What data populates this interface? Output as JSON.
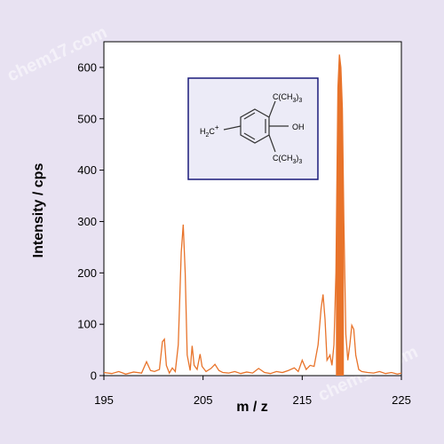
{
  "chart_data": {
    "type": "line",
    "title": "",
    "xlabel": "m / z",
    "ylabel": "Intensity / cps",
    "xlim": [
      195,
      225
    ],
    "ylim": [
      0,
      650
    ],
    "x_ticks": [
      195,
      205,
      215,
      225
    ],
    "y_ticks": [
      0,
      100,
      200,
      300,
      400,
      500,
      600
    ],
    "grid": false,
    "legend": "none",
    "series": [
      {
        "color": "#e8732a",
        "points": [
          [
            195.0,
            6
          ],
          [
            195.8,
            4
          ],
          [
            196.5,
            8
          ],
          [
            197.2,
            3
          ],
          [
            198.0,
            7
          ],
          [
            198.8,
            5
          ],
          [
            199.3,
            27
          ],
          [
            199.7,
            10
          ],
          [
            200.1,
            8
          ],
          [
            200.6,
            12
          ],
          [
            200.9,
            66
          ],
          [
            201.1,
            71
          ],
          [
            201.3,
            20
          ],
          [
            201.6,
            5
          ],
          [
            201.9,
            15
          ],
          [
            202.2,
            8
          ],
          [
            202.5,
            60
          ],
          [
            202.8,
            240
          ],
          [
            203.0,
            294
          ],
          [
            203.2,
            200
          ],
          [
            203.4,
            40
          ],
          [
            203.7,
            10
          ],
          [
            203.9,
            58
          ],
          [
            204.1,
            20
          ],
          [
            204.4,
            12
          ],
          [
            204.7,
            42
          ],
          [
            204.9,
            18
          ],
          [
            205.3,
            8
          ],
          [
            205.8,
            14
          ],
          [
            206.2,
            22
          ],
          [
            206.6,
            10
          ],
          [
            207.0,
            6
          ],
          [
            207.6,
            5
          ],
          [
            208.2,
            8
          ],
          [
            208.8,
            4
          ],
          [
            209.4,
            7
          ],
          [
            210.0,
            5
          ],
          [
            210.6,
            14
          ],
          [
            211.2,
            6
          ],
          [
            211.8,
            4
          ],
          [
            212.4,
            8
          ],
          [
            213.0,
            6
          ],
          [
            213.6,
            10
          ],
          [
            214.2,
            15
          ],
          [
            214.6,
            8
          ],
          [
            215.0,
            30
          ],
          [
            215.4,
            12
          ],
          [
            215.8,
            20
          ],
          [
            216.2,
            18
          ],
          [
            216.6,
            60
          ],
          [
            216.9,
            130
          ],
          [
            217.1,
            158
          ],
          [
            217.3,
            110
          ],
          [
            217.5,
            30
          ],
          [
            217.8,
            40
          ],
          [
            218.0,
            20
          ],
          [
            218.2,
            60
          ],
          [
            218.4,
            200
          ],
          [
            218.6,
            560
          ],
          [
            218.75,
            625
          ],
          [
            218.9,
            600
          ],
          [
            219.05,
            520
          ],
          [
            219.2,
            300
          ],
          [
            219.4,
            80
          ],
          [
            219.6,
            30
          ],
          [
            219.8,
            60
          ],
          [
            220.0,
            98
          ],
          [
            220.2,
            90
          ],
          [
            220.4,
            40
          ],
          [
            220.7,
            12
          ],
          [
            221.0,
            8
          ],
          [
            221.6,
            6
          ],
          [
            222.2,
            5
          ],
          [
            222.8,
            8
          ],
          [
            223.4,
            4
          ],
          [
            224.0,
            6
          ],
          [
            224.6,
            3
          ],
          [
            225.0,
            5
          ]
        ],
        "filled_range": [
          218.3,
          219.25
        ]
      }
    ]
  },
  "inset": {
    "labels": {
      "substituent_top": "C(CH",
      "substituent_top_sub": "3",
      "substituent_top_end": ")",
      "substituent_top_end_sub": "3",
      "substituent_bottom": "C(CH",
      "substituent_bottom_sub": "3",
      "substituent_bottom_end": ")",
      "substituent_bottom_end_sub": "3",
      "hydroxyl": "OH",
      "methylene": "H",
      "methylene_sub": "2",
      "methylene_end": "C",
      "cation_mark": "+"
    },
    "frame_color": "#1a1a7a"
  },
  "watermarks": [
    "chem17.com",
    "chem17.com"
  ]
}
